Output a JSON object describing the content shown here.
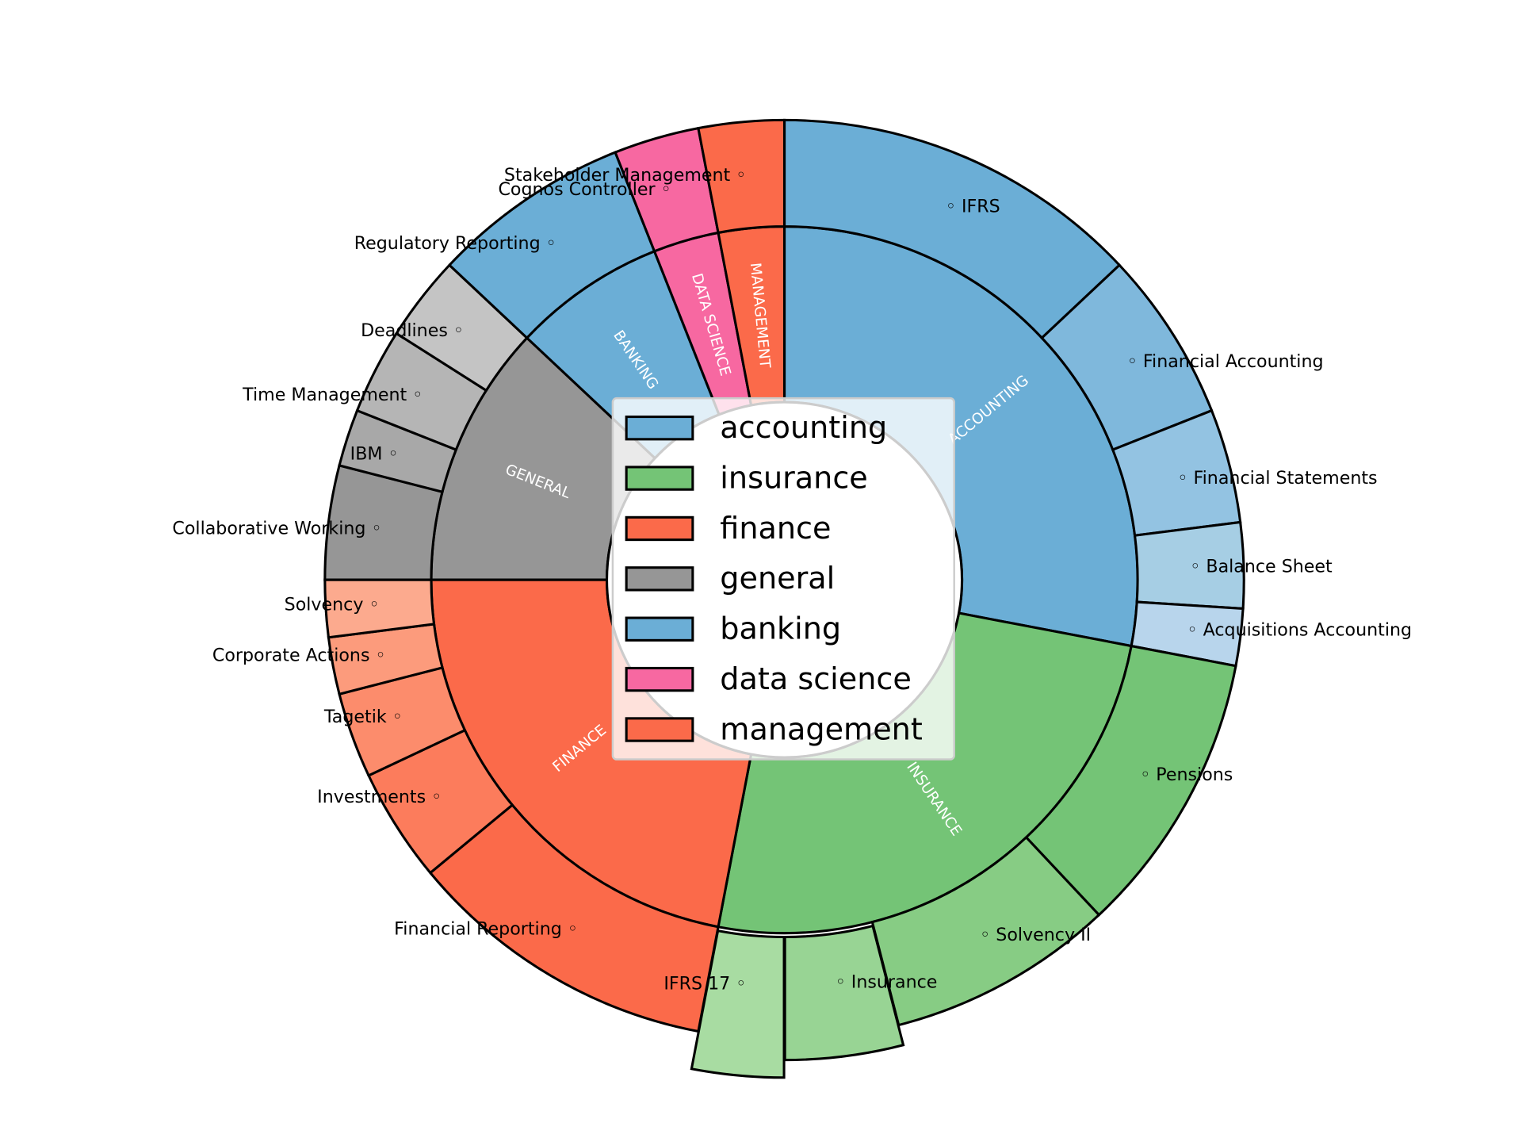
{
  "chart_data": {
    "type": "pie",
    "subtype": "nested donut (sunburst)",
    "start_angle_deg": 90,
    "direction": "clockwise",
    "legend": {
      "placement": "center",
      "entries": [
        "accounting",
        "insurance",
        "finance",
        "general",
        "banking",
        "data science",
        "management"
      ]
    },
    "categories": [
      {
        "name": "accounting",
        "label": "ACCOUNTING",
        "value": 28,
        "color": "#6baed6",
        "children": [
          {
            "name": "IFRS",
            "value": 13,
            "color": "#6baed6"
          },
          {
            "name": "Financial Accounting",
            "value": 6,
            "color": "#7fb8dc"
          },
          {
            "name": "Financial Statements",
            "value": 4,
            "color": "#93c3e2"
          },
          {
            "name": "Balance Sheet",
            "value": 3,
            "color": "#a6cee4"
          },
          {
            "name": "Acquisitions Accounting",
            "value": 2,
            "color": "#b8d5ec"
          }
        ]
      },
      {
        "name": "insurance",
        "label": "INSURANCE",
        "value": 25,
        "color": "#74c476",
        "children": [
          {
            "name": "Pensions",
            "value": 10,
            "color": "#74c476"
          },
          {
            "name": "Solvency II",
            "value": 8,
            "color": "#87cc84"
          },
          {
            "name": "Insurance",
            "value": 4,
            "color": "#98d494",
            "exploded": true
          },
          {
            "name": "IFRS 17",
            "value": 3,
            "color": "#a8dca2",
            "exploded": true
          }
        ]
      },
      {
        "name": "finance",
        "label": "FINANCE",
        "value": 22,
        "color": "#fb6a4a",
        "children": [
          {
            "name": "Financial Reporting",
            "value": 11,
            "color": "#fb6a4a"
          },
          {
            "name": "Investments",
            "value": 4,
            "color": "#fc7c5c"
          },
          {
            "name": "Tagetik",
            "value": 3,
            "color": "#fc8c6c"
          },
          {
            "name": "Corporate Actions",
            "value": 2,
            "color": "#fc9b7c"
          },
          {
            "name": "Solvency",
            "value": 2,
            "color": "#fcaa8e"
          }
        ]
      },
      {
        "name": "general",
        "label": "GENERAL",
        "value": 12,
        "color": "#969696",
        "children": [
          {
            "name": "Collaborative Working",
            "value": 4,
            "color": "#969696"
          },
          {
            "name": "IBM",
            "value": 2,
            "color": "#a8a8a8"
          },
          {
            "name": "Time Management",
            "value": 3,
            "color": "#b5b5b5"
          },
          {
            "name": "Deadlines",
            "value": 3,
            "color": "#c4c4c4"
          }
        ]
      },
      {
        "name": "banking",
        "label": "BANKING",
        "value": 7,
        "color": "#6baed6",
        "children": [
          {
            "name": "Regulatory Reporting",
            "value": 7,
            "color": "#6baed6"
          }
        ]
      },
      {
        "name": "data science",
        "label": "DATA SCIENCE",
        "value": 3,
        "color": "#f768a1",
        "children": [
          {
            "name": "Cognos Controller",
            "value": 3,
            "color": "#f768a1"
          }
        ]
      },
      {
        "name": "management",
        "label": "MANAGEMENT",
        "value": 3,
        "color": "#fb6a4a",
        "children": [
          {
            "name": "Stakeholder Management",
            "value": 3,
            "color": "#fb6a4a"
          }
        ]
      }
    ]
  }
}
